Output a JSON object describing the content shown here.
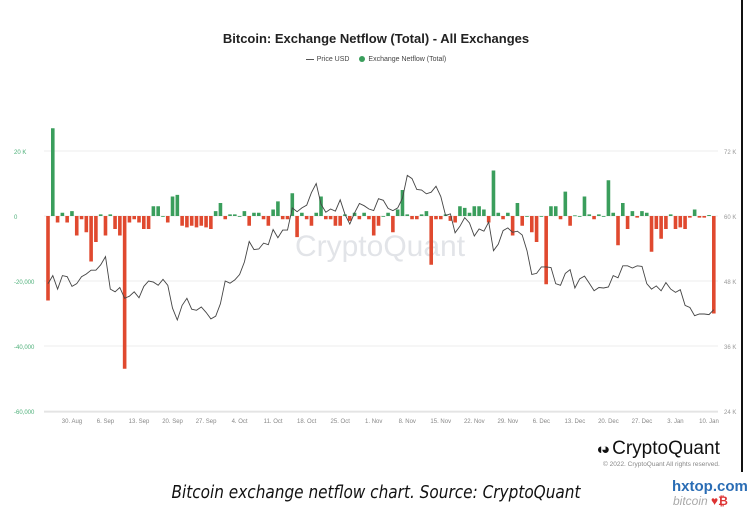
{
  "chart_data": {
    "type": "bar",
    "title": "Bitcoin: Exchange Netflow (Total) - All Exchanges",
    "legend": [
      "Price USD",
      "Exchange Netflow (Total)"
    ],
    "legend_placement": "top-center",
    "watermark": "CryptoQuant",
    "x_tick_labels": [
      "30. Aug",
      "6. Sep",
      "13. Sep",
      "20. Sep",
      "27. Sep",
      "4. Oct",
      "11. Oct",
      "18. Oct",
      "25. Oct",
      "1. Nov",
      "8. Nov",
      "15. Nov",
      "22. Nov",
      "29. Nov",
      "6. Dec",
      "13. Dec",
      "20. Dec",
      "27. Dec",
      "3. Jan",
      "10. Jan"
    ],
    "y_left_ticks": [
      "20 K",
      "0",
      "-20,000",
      "-40,000",
      "-60,000"
    ],
    "y_left_range": [
      -60000,
      20000
    ],
    "y_right_ticks": [
      "72 K",
      "60 K",
      "48 K",
      "36 K",
      "24 K"
    ],
    "y_right_range": [
      24000,
      72000
    ],
    "grid": true,
    "colors": {
      "positive": "#3a9e5c",
      "negative": "#e0492f",
      "price": "#444444",
      "left_axis": "#4caf78",
      "right_axis": "#999999"
    },
    "series": [
      {
        "name": "Exchange Netflow (Total)",
        "unit": "BTC (thousands)",
        "type": "bar",
        "values": [
          -26,
          27,
          -2,
          1,
          -2,
          1.5,
          -6,
          -1,
          -5,
          -14,
          -8,
          0.5,
          -6,
          0.5,
          -4,
          -6,
          -47,
          -2,
          -1,
          -2,
          -4,
          -4,
          3,
          3,
          0,
          -2,
          6,
          6.5,
          -3,
          -3.5,
          -3,
          -3.5,
          -3,
          -3.5,
          -4,
          1.5,
          4,
          -1,
          0.5,
          0.5,
          0,
          1.5,
          -3,
          1,
          1,
          -1,
          -3,
          2,
          4.5,
          -1,
          -1,
          7,
          -6.5,
          1,
          -1,
          -3,
          1,
          6,
          -1,
          -1,
          -3,
          -3,
          0.5,
          -1.5,
          1,
          -1,
          1,
          -1,
          -6,
          -3,
          0,
          1,
          -5,
          2,
          8,
          0.5,
          -1,
          -1,
          0.5,
          1.5,
          -15,
          -1,
          -1,
          0.5,
          -1.5,
          -2,
          3,
          2.5,
          1,
          3,
          3,
          2,
          -2,
          14,
          1,
          -1,
          1,
          -6,
          4,
          -3,
          0,
          -5,
          -8,
          0,
          -21,
          3,
          3,
          -1,
          7.5,
          -3,
          0.2,
          0,
          6,
          0.5,
          -1,
          0.5,
          0,
          11,
          1,
          -9,
          4,
          -4,
          1.5,
          -0.5,
          1.5,
          1,
          -11,
          -4,
          -7,
          -4,
          0.5,
          -4,
          -3.5,
          -4,
          -0.5,
          2,
          -0.5,
          -0.5,
          0.3,
          -30
        ]
      },
      {
        "name": "Price USD",
        "unit": "USD (thousands)",
        "type": "line",
        "values": [
          47.5,
          49,
          46.5,
          49,
          48.8,
          47,
          47.5,
          48.8,
          49.3,
          50,
          50,
          51,
          52.5,
          46.5,
          46,
          46.8,
          44.8,
          45.2,
          46,
          44.9,
          47,
          48,
          47.8,
          47.2,
          48.3,
          47.2,
          43,
          40.8,
          43.5,
          44.8,
          42.8,
          42.6,
          43.2,
          42.2,
          41,
          41.5,
          43.8,
          48,
          47.6,
          48.2,
          49.2,
          51.5,
          55.3,
          53.8,
          53.9,
          55,
          54.7,
          57.5,
          56,
          57.4,
          57.4,
          61.5,
          60.8,
          61.5,
          62,
          64.3,
          66,
          62.2,
          60.7,
          61.3,
          60.9,
          63,
          60.3,
          58.5,
          60.6,
          62.3,
          61.9,
          61.3,
          61,
          63.2,
          62.9,
          61.4,
          61,
          61.5,
          63.3,
          67.5,
          66.9,
          64.9,
          64.8,
          64.1,
          64.4,
          65.5,
          63.6,
          60.1,
          60.4,
          56.9,
          58.1,
          59.7,
          58.7,
          56.3,
          57.6,
          57.2,
          58.9,
          53.6,
          54.8,
          57.3,
          57.8,
          57,
          57.2,
          56.5,
          53.6,
          49.2,
          49.4,
          50.6,
          50.6,
          50.5,
          47.5,
          47.2,
          49.4,
          50.1,
          46.7,
          48.4,
          48.9,
          47.6,
          46.2,
          46.8,
          46.7,
          46.9,
          49,
          48.6,
          50.8,
          50.8,
          50.4,
          50.8,
          50.7,
          47.5,
          46.5,
          47.1,
          46.2,
          47.7,
          46.5,
          45.9,
          46.4,
          43.5,
          43.1,
          41.6,
          41.9,
          41.9,
          41.8,
          42.7
        ]
      }
    ]
  },
  "branding": {
    "logo_text": "CryptoQuant",
    "copyright": "© 2022. CryptoQuant All rights reserved.",
    "caption": "Bitcoin exchange netflow chart. Source: CryptoQuant",
    "site_watermark": "hxtop.com",
    "site_watermark_sub": "bitcoin"
  }
}
